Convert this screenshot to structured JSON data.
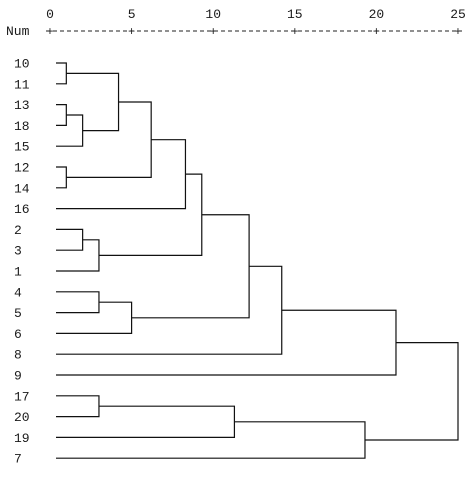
{
  "axis": {
    "header_label": "Num",
    "min": 0,
    "max": 25,
    "ticks": [
      0,
      5,
      10,
      15,
      20,
      25
    ],
    "tick_labels": [
      "0",
      "5",
      "10",
      "15",
      "20",
      "25"
    ],
    "tick_symbol": "+"
  },
  "leaves": [
    "10",
    "11",
    "13",
    "18",
    "15",
    "12",
    "14",
    "16",
    "2",
    "3",
    "1",
    "4",
    "5",
    "6",
    "8",
    "9",
    "17",
    "20",
    "19",
    "7"
  ],
  "merges": [
    {
      "a": "L:0",
      "b": "L:1",
      "height": 1.0
    },
    {
      "a": "L:2",
      "b": "L:3",
      "height": 1.0
    },
    {
      "a": "N:1",
      "b": "L:4",
      "height": 2.0
    },
    {
      "a": "N:0",
      "b": "N:2",
      "height": 4.2
    },
    {
      "a": "L:5",
      "b": "L:6",
      "height": 1.0
    },
    {
      "a": "N:3",
      "b": "N:4",
      "height": 6.2
    },
    {
      "a": "N:5",
      "b": "L:7",
      "height": 8.3
    },
    {
      "a": "L:8",
      "b": "L:9",
      "height": 2.0
    },
    {
      "a": "N:7",
      "b": "L:10",
      "height": 3.0
    },
    {
      "a": "N:6",
      "b": "N:8",
      "height": 9.3
    },
    {
      "a": "L:11",
      "b": "L:12",
      "height": 3.0
    },
    {
      "a": "N:10",
      "b": "L:13",
      "height": 5.0
    },
    {
      "a": "N:9",
      "b": "N:11",
      "height": 12.2
    },
    {
      "a": "N:12",
      "b": "L:14",
      "height": 14.2
    },
    {
      "a": "N:13",
      "b": "L:15",
      "height": 21.2
    },
    {
      "a": "L:16",
      "b": "L:17",
      "height": 3.0
    },
    {
      "a": "N:15",
      "b": "L:18",
      "height": 11.3
    },
    {
      "a": "N:16",
      "b": "L:19",
      "height": 19.3
    },
    {
      "a": "N:14",
      "b": "N:17",
      "height": 25.0
    }
  ]
}
